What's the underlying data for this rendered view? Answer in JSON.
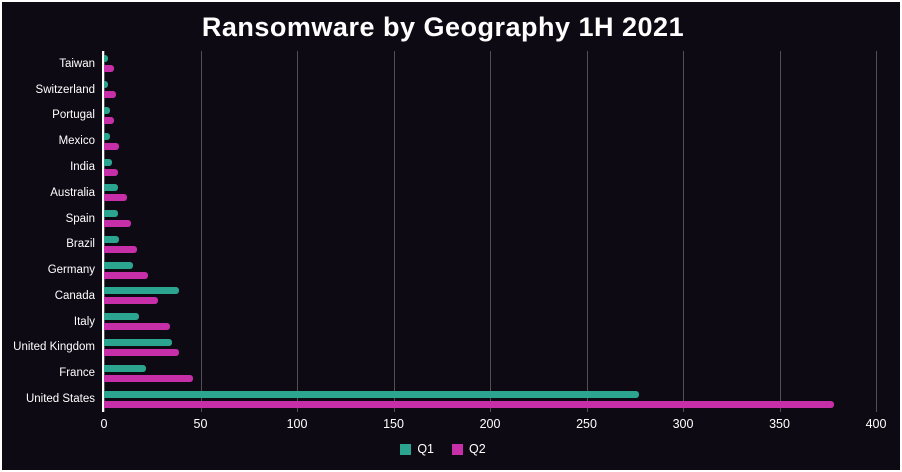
{
  "chart_data": {
    "type": "bar",
    "orientation": "horizontal",
    "title": "Ransomware by Geography 1H 2021",
    "categories": [
      "Taiwan",
      "Switzerland",
      "Portugal",
      "Mexico",
      "India",
      "Australia",
      "Spain",
      "Brazil",
      "Germany",
      "Canada",
      "Italy",
      "United Kingdom",
      "France",
      "United States"
    ],
    "series": [
      {
        "name": "Q1",
        "color": "#2BA58F",
        "values": [
          2,
          2,
          3,
          3,
          4,
          7,
          7,
          8,
          15,
          39,
          18,
          35,
          22,
          277
        ]
      },
      {
        "name": "Q2",
        "color": "#C62FA8",
        "values": [
          5,
          6,
          5,
          8,
          7,
          12,
          14,
          17,
          23,
          28,
          34,
          39,
          46,
          378
        ]
      }
    ],
    "xlim": [
      0,
      400
    ],
    "xticks": [
      0,
      50,
      100,
      150,
      200,
      250,
      300,
      350,
      400
    ],
    "xlabel": "",
    "ylabel": "",
    "grid": true,
    "legend_position": "bottom",
    "background_color": "#0E0A13",
    "axis_color": "#ffffff",
    "text_color": "#ffffff"
  }
}
